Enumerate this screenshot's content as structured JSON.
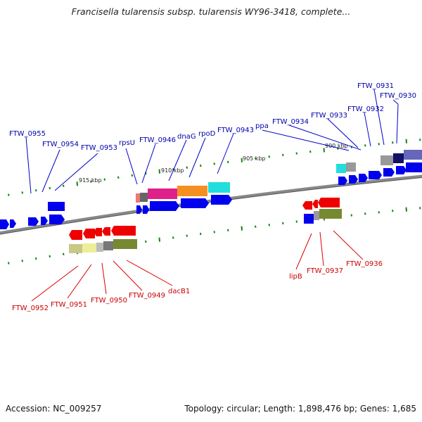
{
  "title": "Francisella tularensis subsp. tularensis WY96-3418, complete...",
  "footer": {
    "accession": "Accession: NC_009257",
    "summary": "Topology: circular; Length: 1,898,476 bp; Genes: 1,685"
  },
  "scale": {
    "tick_labels": [
      "915 kbp",
      "910 kbp",
      "905 kbp",
      "900 kbp"
    ]
  },
  "colors": {
    "forward_gene": "#0000ee",
    "reverse_gene": "#ee0000",
    "forward_label": "#0000aa",
    "reverse_label": "#cc0000",
    "backbone": "#777777",
    "tick": "#118811"
  },
  "forward_labels": [
    "FTW_0955",
    "FTW_0954",
    "FTW_0953",
    "rpsU",
    "FTW_0946",
    "dnaG",
    "rpoD",
    "FTW_0943",
    "ppa",
    "FTW_0934",
    "FTW_0933",
    "FTW_0932",
    "FTW_0931",
    "FTW_0930"
  ],
  "reverse_labels": [
    "FTW_0952",
    "FTW_0951",
    "FTW_0950",
    "FTW_0949",
    "dacB1",
    "lipB",
    "FTW_0937",
    "FTW_0936"
  ]
}
